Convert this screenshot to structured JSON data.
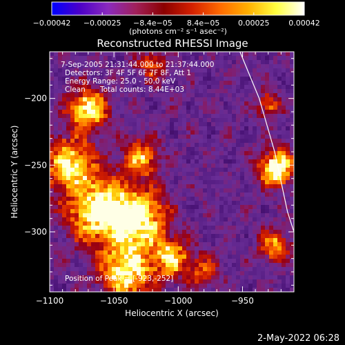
{
  "chart_data": {
    "type": "heatmap",
    "title": "Reconstructed RHESSI Image",
    "xlabel": "Heliocentric X (arcsec)",
    "ylabel": "Heliocentric Y (arcsec)",
    "xlim": [
      -1100,
      -910
    ],
    "ylim": [
      -345,
      -165
    ],
    "x_ticks": [
      "−1100",
      "−1050",
      "−1000",
      "−950"
    ],
    "y_ticks": [
      "−200",
      "−250",
      "−300"
    ],
    "colorbar": {
      "range": [
        -0.00042,
        0.00042
      ],
      "tick_labels": [
        "−0.00042",
        "−0.00025",
        "−8.4e−05",
        "8.4e−05",
        "0.00025",
        "0.00042"
      ],
      "units": "(photons cm⁻² s⁻¹ asec⁻²)",
      "colors": [
        "#0000ff",
        "#4c00c8",
        "#8a2abe",
        "#a0205a",
        "#8b0000",
        "#d42000",
        "#ff6a00",
        "#ffb000",
        "#ffff40",
        "#ffffff"
      ]
    },
    "annotations": {
      "time_range": "7-Sep-2005 21:31:44.000 to 21:37:44.000",
      "detectors": "Detectors: 3F 4F 5F 6F 7F 8F, Att 1",
      "energy": "Energy Range: 25.0 - 50.0 keV",
      "algorithm": "Clean",
      "counts": "Total counts: 8.44E+03",
      "peak": "Position of Peak = [-923,-252]"
    },
    "peak": {
      "x": -923,
      "y": -252
    },
    "hot_regions": [
      {
        "x": -1070,
        "y": -208,
        "sigma": 10,
        "amp": 0.9
      },
      {
        "x": -1085,
        "y": -250,
        "sigma": 14,
        "amp": 0.75
      },
      {
        "x": -1060,
        "y": -285,
        "sigma": 16,
        "amp": 1.0
      },
      {
        "x": -1030,
        "y": -290,
        "sigma": 14,
        "amp": 0.95
      },
      {
        "x": -1040,
        "y": -330,
        "sigma": 14,
        "amp": 0.85
      },
      {
        "x": -1005,
        "y": -320,
        "sigma": 10,
        "amp": 0.7
      },
      {
        "x": -1030,
        "y": -245,
        "sigma": 10,
        "amp": 0.6
      },
      {
        "x": -1020,
        "y": -175,
        "sigma": 8,
        "amp": 0.45
      },
      {
        "x": -980,
        "y": -330,
        "sigma": 8,
        "amp": 0.4
      },
      {
        "x": -923,
        "y": -252,
        "sigma": 9,
        "amp": 1.0
      },
      {
        "x": -930,
        "y": -205,
        "sigma": 6,
        "amp": 0.5
      },
      {
        "x": -925,
        "y": -310,
        "sigma": 8,
        "amp": 0.6
      }
    ],
    "limb_curve": [
      [
        -952,
        -165
      ],
      [
        -937,
        -200
      ],
      [
        -925,
        -240
      ],
      [
        -915,
        -285
      ],
      [
        -910,
        -300
      ]
    ]
  },
  "footer_date": "2-May-2022 06:28"
}
